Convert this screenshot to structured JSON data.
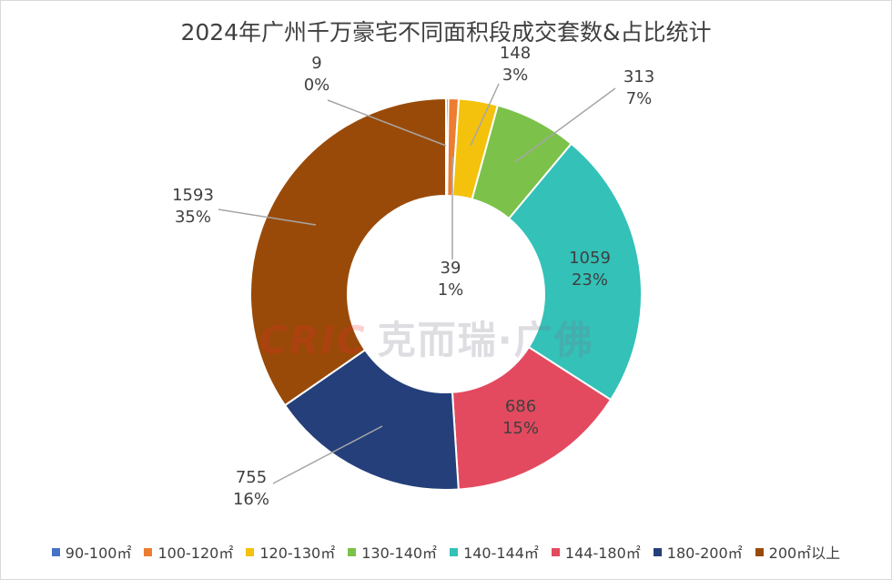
{
  "chart_data": {
    "type": "pie",
    "title": "2024年广州千万豪宅不同面积段成交套数&占比统计",
    "categories": [
      "90-100㎡",
      "100-120㎡",
      "120-130㎡",
      "130-140㎡",
      "140-144㎡",
      "144-180㎡",
      "180-200㎡",
      "200㎡以上"
    ],
    "values": [
      9,
      39,
      148,
      313,
      1059,
      686,
      755,
      1593
    ],
    "percent_labels": [
      "0%",
      "1%",
      "3%",
      "7%",
      "23%",
      "15%",
      "16%",
      "35%"
    ],
    "colors": [
      "#4472c4",
      "#ed7d31",
      "#f4c20d",
      "#7cc14a",
      "#33c1b8",
      "#e34a5f",
      "#243f7a",
      "#9a4a08"
    ],
    "donut": true,
    "legend_position": "bottom"
  },
  "watermark": {
    "brand": "CRIC",
    "text": "克而瑞·广佛"
  }
}
